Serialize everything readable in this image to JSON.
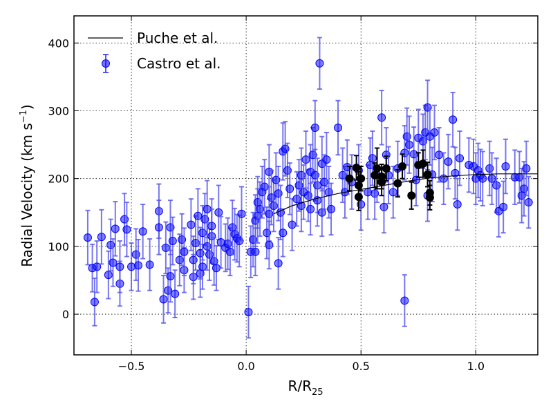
{
  "chart_data": {
    "type": "scatter",
    "xlabel": "R/R",
    "xlabel_sub": "25",
    "ylabel": "Radial Velocity (km s",
    "ylabel_sup": "−1",
    "ylabel_close": ")",
    "xlim": [
      -0.75,
      1.27
    ],
    "ylim": [
      -60,
      440
    ],
    "xticks": [
      -0.5,
      0.0,
      0.5,
      1.0
    ],
    "xtick_labels": [
      "−0.5",
      "0.0",
      "0.5",
      "1.0"
    ],
    "yticks": [
      0,
      100,
      200,
      300,
      400
    ],
    "ytick_labels": [
      "0",
      "100",
      "200",
      "300",
      "400"
    ],
    "grid": true,
    "legend_position": "top-left",
    "colors": {
      "castro": "#0000ff",
      "castro_err": "#5555ee",
      "castro_black": "#000000",
      "puche": "#000000"
    },
    "series": [
      {
        "name": "Puche et al.",
        "type": "line",
        "x": [
          0.12,
          0.2,
          0.3,
          0.4,
          0.5,
          0.6,
          0.7,
          0.8,
          0.9,
          1.0,
          1.1,
          1.2,
          1.27
        ],
        "y": [
          148,
          160,
          170,
          178,
          184,
          190,
          196,
          201,
          204,
          206,
          207,
          207,
          207
        ]
      },
      {
        "name": "Castro et al.",
        "type": "errorbar-scatter",
        "points": [
          [
            -0.69,
            113,
            40
          ],
          [
            -0.67,
            68,
            35
          ],
          [
            -0.66,
            18,
            35
          ],
          [
            -0.65,
            70,
            38
          ],
          [
            -0.63,
            114,
            40
          ],
          [
            -0.6,
            58,
            35
          ],
          [
            -0.59,
            102,
            38
          ],
          [
            -0.58,
            76,
            35
          ],
          [
            -0.57,
            126,
            40
          ],
          [
            -0.55,
            45,
            33
          ],
          [
            -0.55,
            70,
            38
          ],
          [
            -0.53,
            140,
            38
          ],
          [
            -0.52,
            125,
            40
          ],
          [
            -0.5,
            70,
            35
          ],
          [
            -0.48,
            88,
            38
          ],
          [
            -0.47,
            72,
            38
          ],
          [
            -0.45,
            122,
            40
          ],
          [
            -0.42,
            73,
            38
          ],
          [
            -0.38,
            152,
            40
          ],
          [
            -0.38,
            128,
            40
          ],
          [
            -0.36,
            22,
            35
          ],
          [
            -0.35,
            98,
            38
          ],
          [
            -0.34,
            35,
            33
          ],
          [
            -0.33,
            128,
            40
          ],
          [
            -0.33,
            56,
            38
          ],
          [
            -0.32,
            108,
            35
          ],
          [
            -0.31,
            30,
            35
          ],
          [
            -0.29,
            80,
            38
          ],
          [
            -0.28,
            110,
            38
          ],
          [
            -0.27,
            65,
            33
          ],
          [
            -0.27,
            92,
            35
          ],
          [
            -0.24,
            132,
            38
          ],
          [
            -0.23,
            55,
            33
          ],
          [
            -0.23,
            80,
            35
          ],
          [
            -0.22,
            105,
            40
          ],
          [
            -0.21,
            145,
            40
          ],
          [
            -0.2,
            60,
            35
          ],
          [
            -0.2,
            90,
            38
          ],
          [
            -0.19,
            70,
            33
          ],
          [
            -0.19,
            120,
            40
          ],
          [
            -0.18,
            140,
            38
          ],
          [
            -0.17,
            155,
            42
          ],
          [
            -0.17,
            100,
            35
          ],
          [
            -0.16,
            88,
            38
          ],
          [
            -0.15,
            115,
            40
          ],
          [
            -0.15,
            130,
            40
          ],
          [
            -0.14,
            78,
            35
          ],
          [
            -0.13,
            68,
            33
          ],
          [
            -0.12,
            150,
            40
          ],
          [
            -0.11,
            106,
            38
          ],
          [
            -0.09,
            98,
            35
          ],
          [
            -0.08,
            104,
            38
          ],
          [
            -0.07,
            92,
            35
          ],
          [
            -0.06,
            128,
            40
          ],
          [
            -0.05,
            118,
            38
          ],
          [
            -0.04,
            112,
            35
          ],
          [
            -0.03,
            108,
            38
          ],
          [
            -0.02,
            148,
            40
          ],
          [
            0.01,
            3,
            38
          ],
          [
            0.02,
            92,
            38
          ],
          [
            0.03,
            110,
            40
          ],
          [
            0.04,
            138,
            38
          ],
          [
            0.04,
            92,
            35
          ],
          [
            0.05,
            145,
            40
          ],
          [
            0.05,
            165,
            38
          ],
          [
            0.06,
            155,
            40
          ],
          [
            0.07,
            180,
            38
          ],
          [
            0.08,
            188,
            40
          ],
          [
            0.09,
            120,
            38
          ],
          [
            0.1,
            148,
            40
          ],
          [
            0.1,
            210,
            40
          ],
          [
            0.1,
            102,
            35
          ],
          [
            0.11,
            172,
            40
          ],
          [
            0.12,
            160,
            38
          ],
          [
            0.13,
            198,
            40
          ],
          [
            0.14,
            178,
            40
          ],
          [
            0.14,
            75,
            38
          ],
          [
            0.15,
            150,
            40
          ],
          [
            0.16,
            240,
            42
          ],
          [
            0.16,
            120,
            35
          ],
          [
            0.17,
            244,
            40
          ],
          [
            0.18,
            212,
            40
          ],
          [
            0.19,
            185,
            38
          ],
          [
            0.2,
            132,
            38
          ],
          [
            0.22,
            170,
            40
          ],
          [
            0.23,
            190,
            38
          ],
          [
            0.24,
            205,
            40
          ],
          [
            0.24,
            160,
            38
          ],
          [
            0.25,
            180,
            40
          ],
          [
            0.26,
            228,
            42
          ],
          [
            0.27,
            175,
            38
          ],
          [
            0.28,
            210,
            40
          ],
          [
            0.28,
            155,
            38
          ],
          [
            0.29,
            235,
            40
          ],
          [
            0.3,
            275,
            40
          ],
          [
            0.3,
            205,
            38
          ],
          [
            0.31,
            190,
            40
          ],
          [
            0.31,
            168,
            38
          ],
          [
            0.32,
            370,
            38
          ],
          [
            0.33,
            222,
            40
          ],
          [
            0.33,
            150,
            35
          ],
          [
            0.34,
            195,
            40
          ],
          [
            0.35,
            228,
            40
          ],
          [
            0.36,
            180,
            38
          ],
          [
            0.37,
            155,
            38
          ],
          [
            0.4,
            275,
            40
          ],
          [
            0.42,
            205,
            40
          ],
          [
            0.43,
            180,
            38
          ],
          [
            0.44,
            217,
            40
          ],
          [
            0.46,
            195,
            40
          ],
          [
            0.49,
            212,
            38
          ],
          [
            0.5,
            162,
            38
          ],
          [
            0.53,
            180,
            40
          ],
          [
            0.54,
            220,
            40
          ],
          [
            0.55,
            230,
            40
          ],
          [
            0.56,
            178,
            38
          ],
          [
            0.57,
            205,
            40
          ],
          [
            0.59,
            290,
            40
          ],
          [
            0.6,
            158,
            38
          ],
          [
            0.61,
            235,
            40
          ],
          [
            0.62,
            205,
            42
          ],
          [
            0.64,
            180,
            38
          ],
          [
            0.66,
            215,
            40
          ],
          [
            0.69,
            20,
            38
          ],
          [
            0.69,
            238,
            40
          ],
          [
            0.7,
            262,
            42
          ],
          [
            0.71,
            250,
            42
          ],
          [
            0.73,
            236,
            40
          ],
          [
            0.74,
            198,
            38
          ],
          [
            0.75,
            260,
            42
          ],
          [
            0.77,
            255,
            40
          ],
          [
            0.78,
            268,
            40
          ],
          [
            0.79,
            305,
            40
          ],
          [
            0.79,
            175,
            38
          ],
          [
            0.8,
            262,
            42
          ],
          [
            0.81,
            206,
            40
          ],
          [
            0.82,
            268,
            40
          ],
          [
            0.84,
            235,
            40
          ],
          [
            0.86,
            200,
            38
          ],
          [
            0.88,
            225,
            40
          ],
          [
            0.9,
            287,
            40
          ],
          [
            0.91,
            208,
            38
          ],
          [
            0.92,
            162,
            38
          ],
          [
            0.93,
            230,
            40
          ],
          [
            0.97,
            220,
            40
          ],
          [
            0.99,
            218,
            40
          ],
          [
            1.0,
            200,
            38
          ],
          [
            1.01,
            212,
            40
          ],
          [
            1.02,
            205,
            38
          ],
          [
            1.03,
            200,
            40
          ],
          [
            1.06,
            215,
            40
          ],
          [
            1.07,
            200,
            38
          ],
          [
            1.09,
            190,
            40
          ],
          [
            1.1,
            152,
            38
          ],
          [
            1.12,
            158,
            38
          ],
          [
            1.13,
            218,
            40
          ],
          [
            1.17,
            202,
            40
          ],
          [
            1.19,
            202,
            38
          ],
          [
            1.2,
            175,
            40
          ],
          [
            1.21,
            185,
            40
          ],
          [
            1.22,
            215,
            40
          ],
          [
            1.23,
            165,
            38
          ]
        ],
        "black_points": [
          [
            0.45,
            200,
            18
          ],
          [
            0.48,
            216,
            18
          ],
          [
            0.49,
            173,
            20
          ],
          [
            0.49,
            190,
            20
          ],
          [
            0.5,
            200,
            18
          ],
          [
            0.56,
            205,
            18
          ],
          [
            0.57,
            215,
            30
          ],
          [
            0.59,
            195,
            20
          ],
          [
            0.59,
            203,
            18
          ],
          [
            0.61,
            215,
            18
          ],
          [
            0.66,
            193,
            20
          ],
          [
            0.68,
            218,
            18
          ],
          [
            0.72,
            175,
            20
          ],
          [
            0.75,
            220,
            18
          ],
          [
            0.77,
            222,
            20
          ],
          [
            0.79,
            206,
            18
          ],
          [
            0.8,
            179,
            18
          ],
          [
            0.8,
            172,
            18
          ]
        ]
      }
    ]
  }
}
